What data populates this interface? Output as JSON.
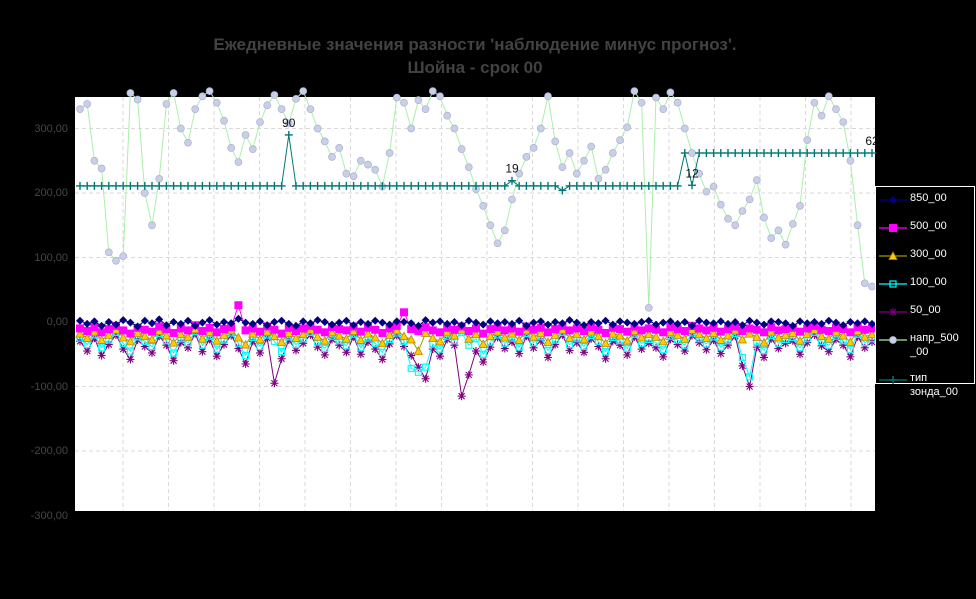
{
  "window": {
    "background": "#000000",
    "plot_background": "#ffffff"
  },
  "title": {
    "line1": "Ежедневные значения разности 'наблюдение минус прогноз'.",
    "line2": "Шойна - срок 00"
  },
  "chart_data": {
    "type": "line",
    "title": "Ежедневные значения разности 'наблюдение минус прогноз'. Шойна - срок 00",
    "xlabel": "",
    "ylabel": "",
    "x_axis": {
      "labels_visible": false,
      "points": 111
    },
    "ylim": [
      -300,
      350
    ],
    "grid": true,
    "grid_color": "#d9d9d9",
    "yticks": [
      {
        "value": 300,
        "label": "300,00"
      },
      {
        "value": 200,
        "label": "200,00"
      },
      {
        "value": 100,
        "label": "100,00"
      },
      {
        "value": 0,
        "label": "0,00"
      },
      {
        "value": -100,
        "label": "-100,00"
      },
      {
        "value": -200,
        "label": "-200,00"
      },
      {
        "value": -300,
        "label": "-300,00"
      }
    ],
    "legend_position": "right",
    "annotation_color": "#111111",
    "annotations": [
      {
        "text": "90",
        "series": "тип зонда_00",
        "i": 29,
        "value": 290
      },
      {
        "text": "19",
        "series": "тип зонда_00",
        "i": 60,
        "value": 219
      },
      {
        "text": "12",
        "series": "тип зонда_00",
        "i": 85,
        "value": 212
      },
      {
        "text": "62",
        "series": "тип зонда_00",
        "i": 110,
        "value": 262
      }
    ],
    "series": [
      {
        "name": "850_00",
        "label": "850_00",
        "color": "#000080",
        "marker": "diamond",
        "marker_color": "#000080",
        "values": [
          2,
          -3,
          1,
          -6,
          0,
          -4,
          3,
          -1,
          -7,
          2,
          -2,
          4,
          -5,
          0,
          -3,
          2,
          -6,
          -1,
          3,
          -4,
          0,
          -2,
          5,
          -1,
          -3,
          1,
          -5,
          0,
          2,
          -3,
          -6,
          1,
          -2,
          3,
          0,
          -4,
          -1,
          2,
          -5,
          0,
          -3,
          2,
          -1,
          -4,
          1,
          0,
          -2,
          -6,
          3,
          -1,
          1,
          -3,
          0,
          -5,
          2,
          -1,
          -4,
          1,
          -2,
          0,
          -3,
          2,
          -6,
          -1,
          1,
          -4,
          0,
          -2,
          3,
          -1,
          -5,
          0,
          -2,
          2,
          -4,
          1,
          -1,
          -3,
          0,
          2,
          -4,
          -1,
          1,
          -3,
          0,
          -6,
          2,
          -1,
          -2,
          1,
          -3,
          0,
          -5,
          2,
          -1,
          -4,
          1,
          0,
          -2,
          -6,
          1,
          -2,
          0,
          -3,
          2,
          -1,
          -5,
          0,
          -2,
          1,
          -3
        ]
      },
      {
        "name": "500_00",
        "label": "500_00",
        "color": "#ff00ff",
        "marker": "square",
        "marker_color": "#ff00ff",
        "values": [
          -10,
          -14,
          -8,
          -16,
          -11,
          -6,
          -13,
          -18,
          -9,
          -12,
          -15,
          -7,
          -11,
          -17,
          -10,
          -13,
          -5,
          -14,
          -9,
          -16,
          -11,
          -8,
          26,
          -13,
          -10,
          -15,
          -7,
          -12,
          -18,
          -9,
          -14,
          -10,
          -6,
          -12,
          -16,
          -8,
          -11,
          -13,
          -7,
          -15,
          -9,
          -12,
          -17,
          -10,
          -6,
          15,
          -11,
          -14,
          -8,
          -13,
          -16,
          -9,
          -12,
          -7,
          -14,
          -10,
          -18,
          -11,
          -8,
          -13,
          -10,
          -15,
          -7,
          -12,
          -9,
          -16,
          -11,
          -6,
          -13,
          -10,
          -14,
          -8,
          -12,
          -17,
          -9,
          -11,
          -15,
          -7,
          -13,
          -10,
          -12,
          -16,
          -8,
          -11,
          -14,
          -6,
          -10,
          -13,
          -9,
          -15,
          -11,
          -7,
          -14,
          -10,
          -12,
          -16,
          -8,
          -13,
          -11,
          -9,
          -15,
          -10,
          -6,
          -12,
          -14,
          -9,
          -11,
          -16,
          -8,
          -12,
          -10
        ]
      },
      {
        "name": "300_00",
        "label": "300_00",
        "color": "#999900",
        "marker": "triangle",
        "marker_color": "#ffcc00",
        "values": [
          -18,
          -25,
          -15,
          -28,
          -20,
          -12,
          -24,
          -30,
          -17,
          -22,
          -27,
          -14,
          -21,
          -32,
          -19,
          -23,
          -11,
          -26,
          -16,
          -29,
          -20,
          -13,
          -24,
          -35,
          -18,
          -27,
          -15,
          -22,
          -31,
          -17,
          -25,
          -19,
          -12,
          -23,
          -29,
          -16,
          -21,
          -26,
          -14,
          -28,
          -18,
          -24,
          -33,
          -20,
          -13,
          -22,
          -27,
          -45,
          -17,
          -25,
          -30,
          -16,
          -21,
          -12,
          -26,
          -19,
          -34,
          -22,
          -15,
          -24,
          -18,
          -28,
          -13,
          -23,
          -17,
          -31,
          -20,
          -12,
          -25,
          -19,
          -27,
          -15,
          -22,
          -33,
          -18,
          -21,
          -29,
          -14,
          -24,
          -19,
          -23,
          -30,
          -16,
          -20,
          -26,
          -12,
          -19,
          -25,
          -17,
          -28,
          -21,
          -13,
          -27,
          -18,
          -23,
          -32,
          -15,
          -24,
          -20,
          -17,
          -29,
          -19,
          -12,
          -22,
          -26,
          -16,
          -21,
          -31,
          -14,
          -23,
          -19
        ]
      },
      {
        "name": "100_00",
        "label": "100_00",
        "color": "#00ffff",
        "marker": "square-open",
        "marker_color": "#00ffff",
        "values": [
          -25,
          -35,
          -20,
          -40,
          -28,
          -16,
          -33,
          -45,
          -23,
          -30,
          -38,
          -18,
          -29,
          -48,
          -26,
          -32,
          -15,
          -36,
          -22,
          -42,
          -28,
          -17,
          -33,
          -52,
          -24,
          -38,
          -20,
          -30,
          -46,
          -23,
          -35,
          -26,
          -16,
          -31,
          -41,
          -22,
          -29,
          -37,
          -19,
          -40,
          -25,
          -33,
          -47,
          -27,
          -17,
          -30,
          -72,
          -78,
          -70,
          -34,
          -42,
          -22,
          -29,
          -16,
          -36,
          -26,
          -50,
          -31,
          -20,
          -33,
          -25,
          -39,
          -18,
          -32,
          -23,
          -44,
          -28,
          -16,
          -35,
          -26,
          -38,
          -21,
          -30,
          -46,
          -24,
          -29,
          -41,
          -19,
          -33,
          -27,
          -32,
          -43,
          -22,
          -28,
          -36,
          -17,
          -26,
          -34,
          -23,
          -39,
          -29,
          -18,
          -55,
          -85,
          -31,
          -44,
          -21,
          -33,
          -27,
          -24,
          -40,
          -26,
          -16,
          -30,
          -36,
          -22,
          -29,
          -43,
          -19,
          -32,
          -26
        ]
      },
      {
        "name": "50_00",
        "label": "50_00",
        "color": "#800080",
        "marker": "star",
        "marker_color": "#800080",
        "values": [
          -30,
          -45,
          -25,
          -52,
          -35,
          -20,
          -42,
          -58,
          -28,
          -38,
          -48,
          -22,
          -36,
          -60,
          -32,
          -40,
          -18,
          -46,
          -27,
          -53,
          -35,
          -21,
          -41,
          -65,
          -30,
          -48,
          -25,
          -95,
          -57,
          -28,
          -44,
          -33,
          -20,
          -39,
          -51,
          -27,
          -36,
          -47,
          -23,
          -50,
          -31,
          -42,
          -58,
          -34,
          -21,
          -38,
          -52,
          -70,
          -88,
          -42,
          -53,
          -27,
          -36,
          -115,
          -82,
          -45,
          -62,
          -39,
          -24,
          -41,
          -31,
          -49,
          -22,
          -40,
          -29,
          -55,
          -35,
          -20,
          -44,
          -32,
          -47,
          -26,
          -38,
          -57,
          -30,
          -36,
          -51,
          -23,
          -42,
          -33,
          -40,
          -54,
          -27,
          -35,
          -45,
          -21,
          -32,
          -43,
          -28,
          -49,
          -36,
          -22,
          -68,
          -100,
          -39,
          -55,
          -26,
          -41,
          -33,
          -29,
          -50,
          -32,
          -20,
          -37,
          -46,
          -27,
          -36,
          -54,
          -23,
          -40,
          -31
        ]
      },
      {
        "name": "напр_500_00",
        "label": "напр_500\n_00",
        "color": "#aaefaa",
        "marker": "circle",
        "marker_color": "#c9cfe9",
        "values": [
          330,
          338,
          250,
          238,
          108,
          95,
          102,
          355,
          345,
          200,
          150,
          222,
          338,
          355,
          300,
          278,
          330,
          350,
          358,
          340,
          312,
          270,
          248,
          290,
          268,
          310,
          336,
          352,
          330,
          308,
          346,
          358,
          330,
          300,
          280,
          256,
          270,
          230,
          226,
          250,
          244,
          236,
          210,
          262,
          348,
          340,
          300,
          344,
          330,
          358,
          350,
          320,
          300,
          268,
          240,
          206,
          180,
          150,
          122,
          142,
          190,
          230,
          256,
          270,
          300,
          350,
          280,
          240,
          262,
          230,
          250,
          272,
          222,
          236,
          262,
          282,
          302,
          358,
          340,
          22,
          348,
          330,
          356,
          340,
          300,
          262,
          230,
          202,
          210,
          182,
          160,
          150,
          172,
          190,
          220,
          162,
          130,
          142,
          120,
          152,
          180,
          282,
          340,
          320,
          350,
          330,
          310,
          250,
          150,
          60,
          55
        ]
      },
      {
        "name": "тип зонда_00",
        "label": "тип\nзонда_00",
        "color": "#007878",
        "marker": "plus",
        "marker_color": "#007878",
        "values": [
          211,
          211,
          211,
          211,
          211,
          211,
          211,
          211,
          211,
          211,
          211,
          211,
          211,
          211,
          211,
          211,
          211,
          211,
          211,
          211,
          211,
          211,
          211,
          211,
          211,
          211,
          211,
          211,
          211,
          290,
          211,
          211,
          211,
          211,
          211,
          211,
          211,
          211,
          211,
          211,
          211,
          211,
          211,
          211,
          211,
          211,
          211,
          211,
          211,
          211,
          211,
          211,
          211,
          211,
          211,
          211,
          211,
          211,
          211,
          211,
          219,
          211,
          211,
          211,
          211,
          211,
          211,
          204,
          211,
          211,
          211,
          211,
          211,
          211,
          211,
          211,
          211,
          211,
          211,
          211,
          211,
          211,
          211,
          211,
          262,
          212,
          262,
          262,
          262,
          262,
          262,
          262,
          262,
          262,
          262,
          262,
          262,
          262,
          262,
          262,
          262,
          262,
          262,
          262,
          262,
          262,
          262,
          262,
          262,
          262,
          262
        ]
      }
    ]
  }
}
